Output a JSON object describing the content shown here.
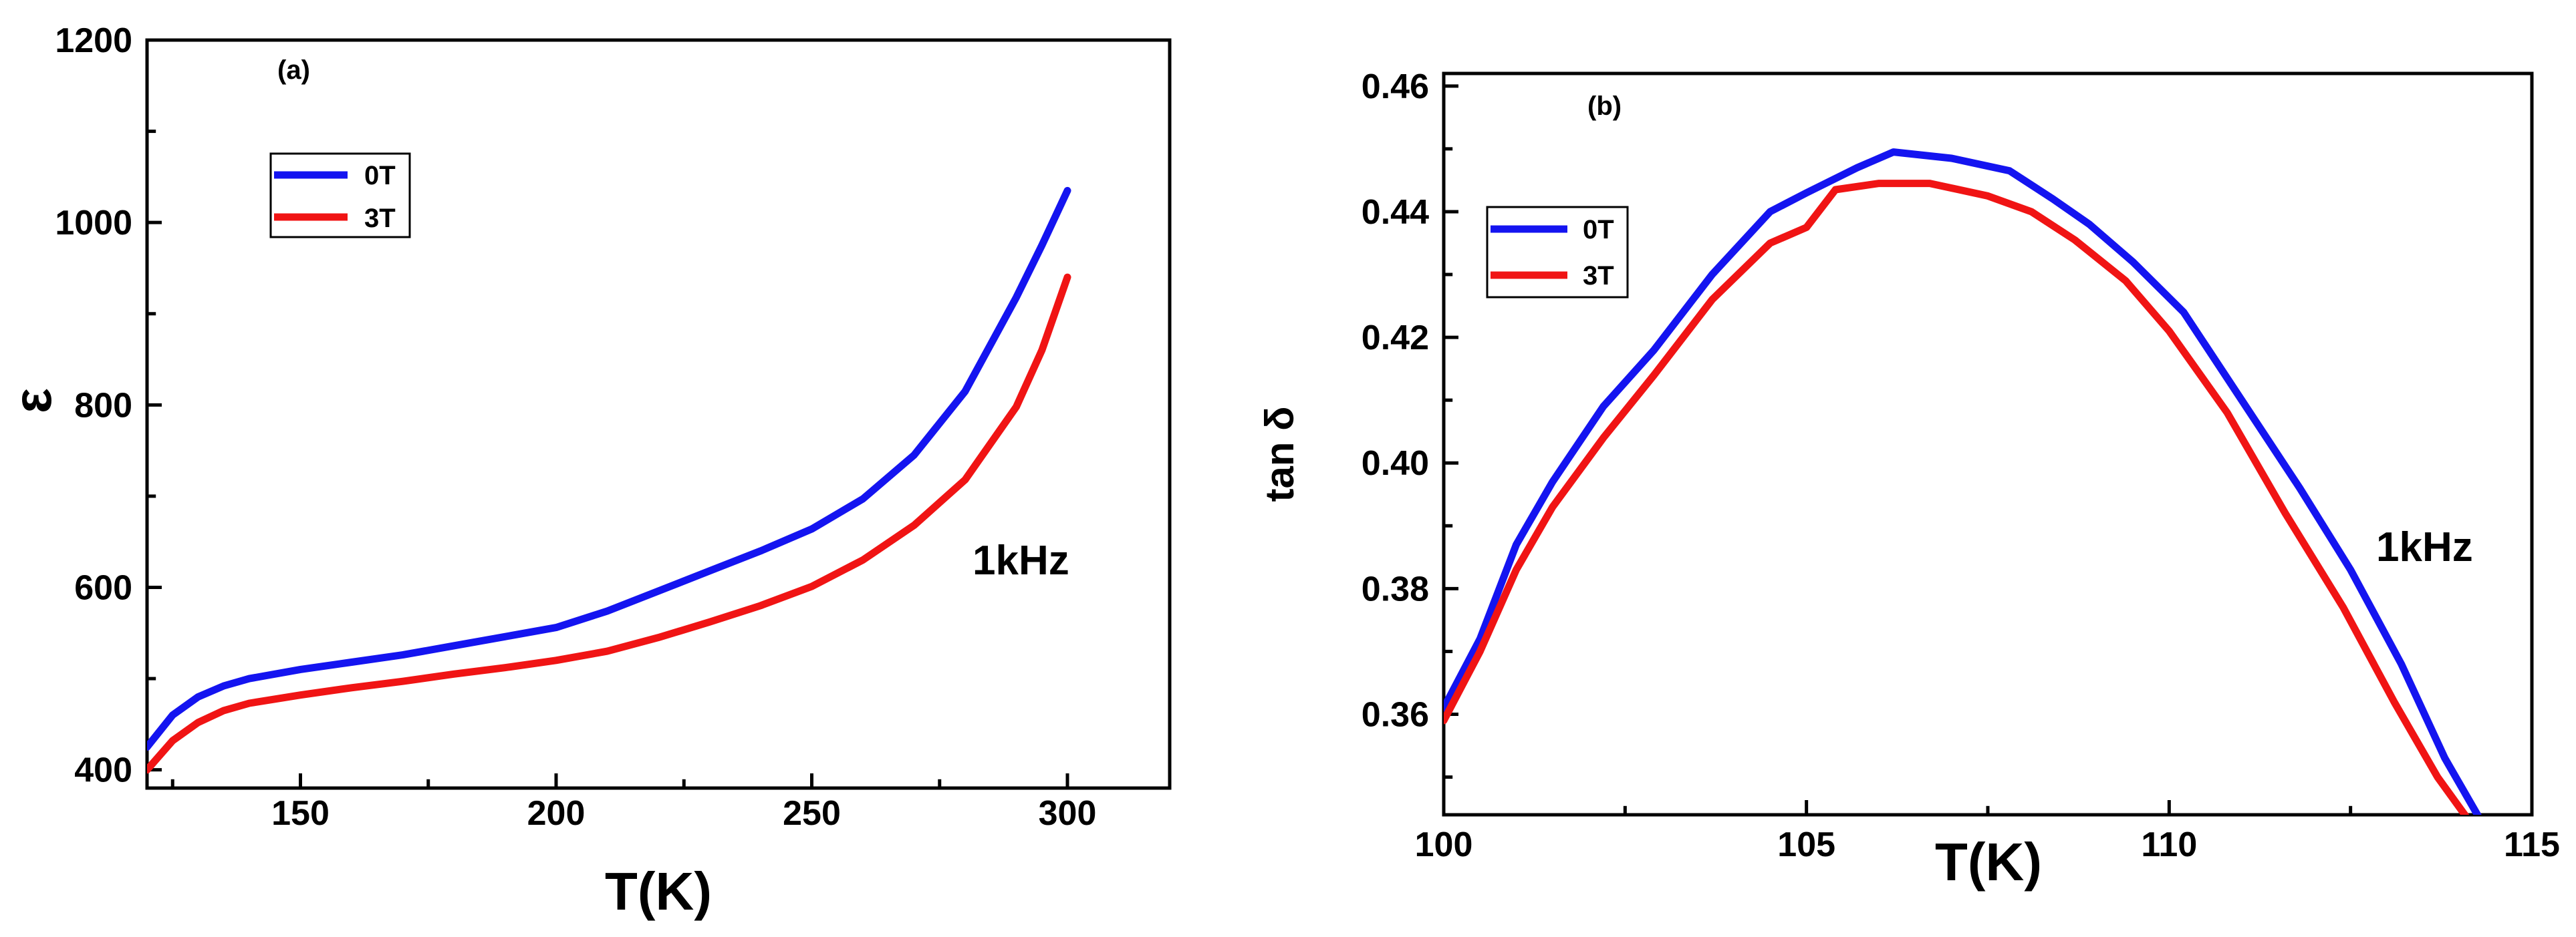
{
  "chart_data": [
    {
      "type": "line",
      "panel": "(a)",
      "xlabel": "T(K)",
      "ylabel": "ε",
      "xlim": [
        120,
        320
      ],
      "ylim": [
        380,
        1200
      ],
      "xticks": [
        150,
        200,
        250,
        300
      ],
      "yticks": [
        400,
        600,
        800,
        1000,
        1200
      ],
      "annotation": "1kHz",
      "legend_position": "upper-left",
      "series": [
        {
          "name": "0T",
          "color": "#1414f0",
          "x": [
            120,
            125,
            130,
            135,
            140,
            150,
            160,
            170,
            180,
            190,
            200,
            210,
            220,
            230,
            240,
            250,
            260,
            270,
            280,
            290,
            295,
            300
          ],
          "y": [
            425,
            460,
            480,
            492,
            500,
            510,
            518,
            526,
            536,
            546,
            556,
            574,
            596,
            618,
            640,
            664,
            697,
            745,
            815,
            918,
            975,
            1035
          ]
        },
        {
          "name": "3T",
          "color": "#f01414",
          "x": [
            120,
            125,
            130,
            135,
            140,
            150,
            160,
            170,
            180,
            190,
            200,
            210,
            220,
            230,
            240,
            250,
            260,
            270,
            280,
            290,
            295,
            300
          ],
          "y": [
            400,
            432,
            452,
            465,
            473,
            482,
            490,
            497,
            505,
            512,
            520,
            530,
            545,
            562,
            580,
            601,
            630,
            668,
            718,
            798,
            860,
            940
          ]
        }
      ]
    },
    {
      "type": "line",
      "panel": "(b)",
      "xlabel": "T(K)",
      "ylabel": "tan δ",
      "xlim": [
        100,
        115
      ],
      "ylim": [
        0.344,
        0.462
      ],
      "xticks": [
        100,
        105,
        110,
        115
      ],
      "yticks": [
        0.36,
        0.38,
        0.4,
        0.42,
        0.44,
        0.46
      ],
      "ytick_labels": [
        "0.36",
        "0.38",
        "0.40",
        "0.42",
        "0.44",
        "0.46"
      ],
      "annotation": "1kHz",
      "legend_position": "upper-left",
      "series": [
        {
          "name": "0T",
          "color": "#1414f0",
          "x": [
            100,
            100.5,
            101,
            101.5,
            102.2,
            102.9,
            103.7,
            104.5,
            105,
            105.7,
            106.2,
            107,
            107.8,
            108.4,
            108.9,
            109.5,
            110.2,
            111,
            111.8,
            112.5,
            113.2,
            113.8,
            114.3
          ],
          "y": [
            0.361,
            0.372,
            0.387,
            0.397,
            0.409,
            0.418,
            0.43,
            0.44,
            0.443,
            0.447,
            0.4495,
            0.4485,
            0.4465,
            0.442,
            0.438,
            0.432,
            0.424,
            0.41,
            0.396,
            0.383,
            0.368,
            0.353,
            0.343
          ]
        },
        {
          "name": "3T",
          "color": "#f01414",
          "x": [
            100,
            100.5,
            101,
            101.5,
            102.2,
            102.9,
            103.7,
            104.5,
            105,
            105.4,
            106,
            106.7,
            107.5,
            108.1,
            108.7,
            109.4,
            110,
            110.8,
            111.6,
            112.4,
            113.1,
            113.7,
            114.2
          ],
          "y": [
            0.359,
            0.37,
            0.383,
            0.393,
            0.404,
            0.414,
            0.426,
            0.435,
            0.4375,
            0.4435,
            0.4445,
            0.4445,
            0.4425,
            0.44,
            0.4355,
            0.429,
            0.421,
            0.408,
            0.392,
            0.377,
            0.362,
            0.35,
            0.342
          ]
        }
      ]
    }
  ]
}
